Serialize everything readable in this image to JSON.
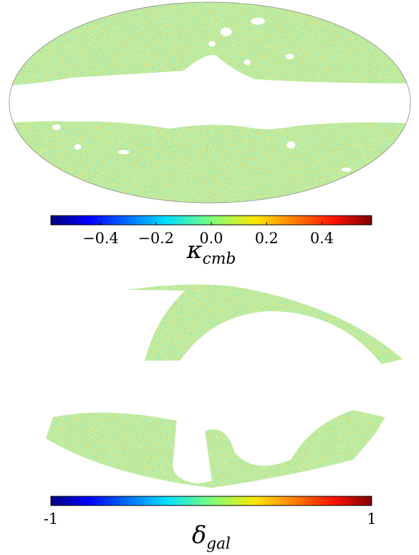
{
  "chart_data": [
    {
      "type": "colormap",
      "xlim": [
        -0.58,
        0.58
      ],
      "xticks": [
        {
          "value": -0.4,
          "label": "−0.4"
        },
        {
          "value": -0.2,
          "label": "−0.2"
        },
        {
          "value": 0,
          "label": "0.0"
        },
        {
          "value": 0.2,
          "label": "0.2"
        },
        {
          "value": 0.4,
          "label": "0.4"
        }
      ],
      "xlabel": {
        "symbol": "κ",
        "subscript": "cmb"
      }
    },
    {
      "type": "colormap",
      "xlim": [
        -1,
        1
      ],
      "xticks": [
        {
          "value": -1,
          "label": "-1"
        },
        {
          "value": 1,
          "label": "1"
        }
      ],
      "xlabel": {
        "symbol": "δ",
        "subscript": "gal"
      }
    }
  ]
}
